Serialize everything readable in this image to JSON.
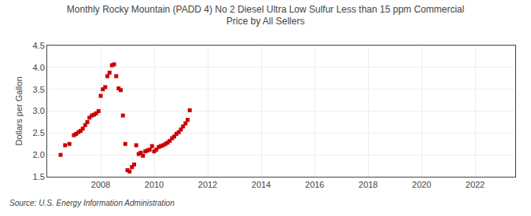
{
  "chart_data": {
    "type": "scatter",
    "title": "Monthly Rocky Mountain (PADD 4) No 2 Diesel Ultra Low Sulfur Less than 15 ppm Commercial\nPrice by All Sellers",
    "ylabel": "Dollars per Gallon",
    "annotations": [
      "Source: U.S. Energy Information Administration"
    ],
    "color": "#cc0000",
    "marker": "square",
    "grid": true,
    "xlim": [
      2006.0,
      2023.5
    ],
    "ylim": [
      1.5,
      4.5
    ],
    "xticks": [
      2008,
      2010,
      2012,
      2014,
      2016,
      2018,
      2020,
      2022
    ],
    "yticks": [
      1.5,
      {
        "value": 2.0,
        "label": "2.0"
      },
      2.5,
      {
        "value": 3.0,
        "label": "3.0"
      },
      3.5,
      {
        "value": 4.0,
        "label": "4.0"
      },
      4.5
    ],
    "x": [
      2006.5,
      2006.67,
      2006.83,
      2007.0,
      2007.08,
      2007.17,
      2007.25,
      2007.33,
      2007.42,
      2007.5,
      2007.58,
      2007.67,
      2007.75,
      2007.83,
      2007.92,
      2008.0,
      2008.08,
      2008.17,
      2008.25,
      2008.33,
      2008.42,
      2008.5,
      2008.58,
      2008.67,
      2008.75,
      2008.83,
      2008.92,
      2009.0,
      2009.08,
      2009.17,
      2009.25,
      2009.33,
      2009.42,
      2009.5,
      2009.58,
      2009.67,
      2009.75,
      2009.83,
      2009.92,
      2010.0,
      2010.08,
      2010.17,
      2010.25,
      2010.33,
      2010.42,
      2010.5,
      2010.58,
      2010.67,
      2010.75,
      2010.83,
      2010.92,
      2011.0,
      2011.08,
      2011.17,
      2011.25,
      2011.33
    ],
    "values": [
      2.0,
      2.22,
      2.25,
      2.45,
      2.48,
      2.52,
      2.55,
      2.6,
      2.68,
      2.75,
      2.85,
      2.9,
      2.92,
      2.95,
      3.0,
      3.35,
      3.5,
      3.55,
      3.8,
      3.88,
      4.05,
      4.07,
      3.8,
      3.52,
      3.48,
      2.9,
      2.25,
      1.65,
      1.62,
      1.72,
      1.78,
      2.22,
      2.02,
      2.05,
      1.98,
      2.08,
      2.1,
      2.12,
      2.2,
      2.08,
      2.12,
      2.18,
      2.2,
      2.22,
      2.25,
      2.28,
      2.32,
      2.38,
      2.42,
      2.48,
      2.52,
      2.58,
      2.65,
      2.72,
      2.8,
      3.02
    ]
  }
}
